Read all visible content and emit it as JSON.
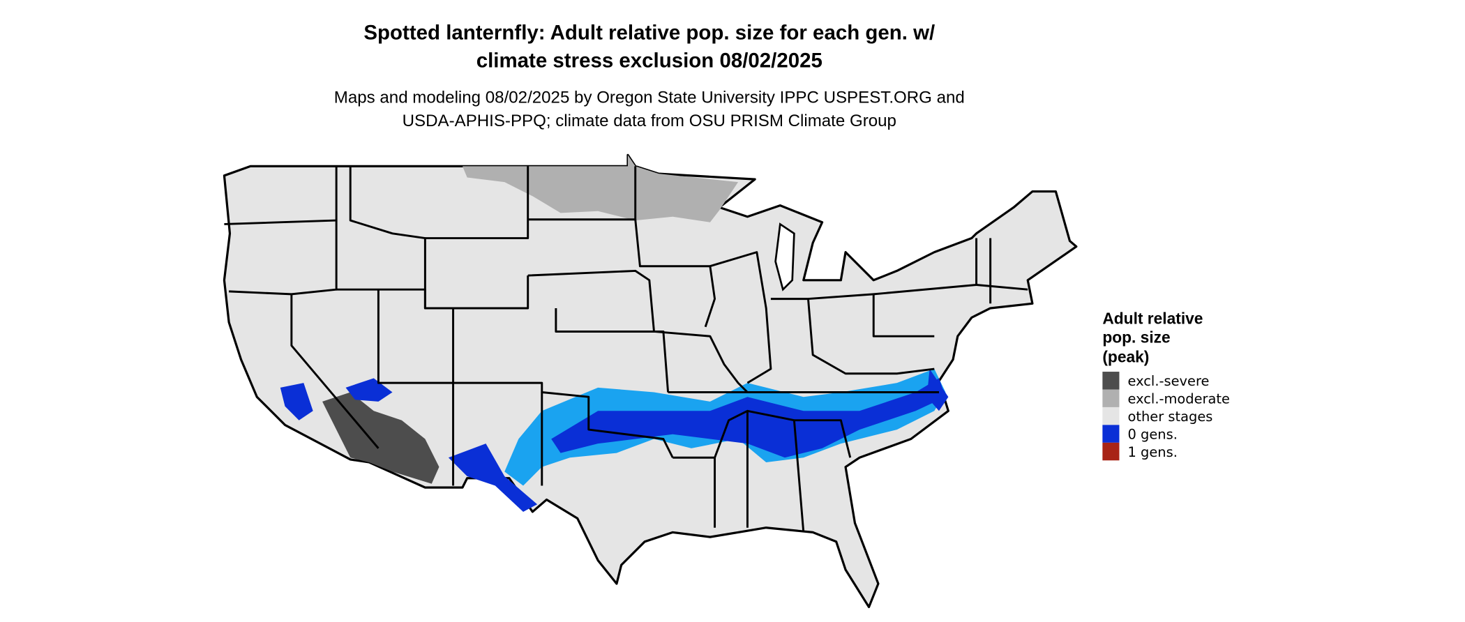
{
  "title": {
    "line1": "Spotted lanternfly: Adult relative pop. size for each gen. w/",
    "line2": "climate stress exclusion 08/02/2025"
  },
  "subtitle": {
    "line1": "Maps and modeling 08/02/2025 by Oregon State University IPPC USPEST.ORG and",
    "line2": "USDA-APHIS-PPQ; climate data from OSU PRISM Climate Group"
  },
  "legend": {
    "title_lines": [
      "Adult relative",
      "pop. size",
      "(peak)"
    ],
    "items": [
      {
        "label": "excl.-severe",
        "color": "#4d4d4d"
      },
      {
        "label": "excl.-moderate",
        "color": "#b0b0b0"
      },
      {
        "label": "other stages",
        "color": "#e5e5e5"
      },
      {
        "label": "0 gens.",
        "color": "#0a2fd6"
      },
      {
        "label": "1 gens.",
        "color": "#a82416"
      }
    ]
  },
  "colors": {
    "light_blue": "#1aa3f0",
    "border": "#000000"
  }
}
